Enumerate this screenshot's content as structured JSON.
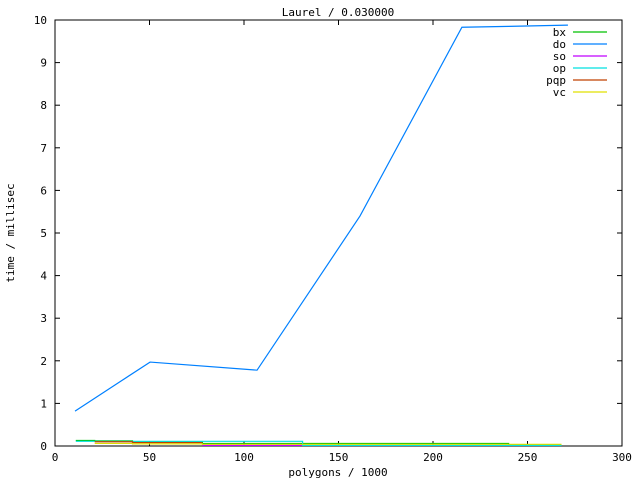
{
  "chart_data": {
    "type": "line",
    "title": "Laurel / 0.030000",
    "xlabel": "polygons / 1000",
    "ylabel": "time / millisec",
    "xlim": [
      0,
      300
    ],
    "ylim": [
      0,
      10
    ],
    "xticks": [
      0,
      50,
      100,
      150,
      200,
      250,
      300
    ],
    "yticks": [
      0,
      1,
      2,
      3,
      4,
      5,
      6,
      7,
      8,
      9,
      10
    ],
    "grid": false,
    "legend": "top-right",
    "series": [
      {
        "name": "bx",
        "color": "#00c000",
        "step": true,
        "points": [
          [
            11,
            0.13
          ],
          [
            21,
            0.12
          ],
          [
            41,
            0.09
          ],
          [
            78,
            0.06
          ],
          [
            240,
            0.03
          ],
          [
            268,
            0.03
          ]
        ]
      },
      {
        "name": "do",
        "color": "#0080ff",
        "step": false,
        "points": [
          [
            10.6,
            0.82
          ],
          [
            50.3,
            1.97
          ],
          [
            106.9,
            1.78
          ],
          [
            161.4,
            5.4
          ],
          [
            215.3,
            9.83
          ],
          [
            240,
            9.85
          ],
          [
            271.4,
            9.88
          ]
        ]
      },
      {
        "name": "so",
        "color": "#c000ff",
        "step": true,
        "points": [
          [
            78,
            0.015
          ],
          [
            131,
            0.015
          ]
        ]
      },
      {
        "name": "op",
        "color": "#00e0e0",
        "step": true,
        "points": [
          [
            11,
            0.11
          ],
          [
            17,
            0.11
          ],
          [
            131,
            0.015
          ],
          [
            268,
            0.015
          ]
        ]
      },
      {
        "name": "pqp",
        "color": "#c04000",
        "step": true,
        "points": [
          [
            21,
            0.1
          ],
          [
            31,
            0.1
          ],
          [
            41,
            0.08
          ],
          [
            78,
            0.08
          ]
        ]
      },
      {
        "name": "vc",
        "color": "#e0e000",
        "step": true,
        "points": [
          [
            21,
            0.06
          ],
          [
            41,
            0.05
          ],
          [
            78,
            0.04
          ],
          [
            268,
            0.04
          ]
        ]
      }
    ]
  }
}
